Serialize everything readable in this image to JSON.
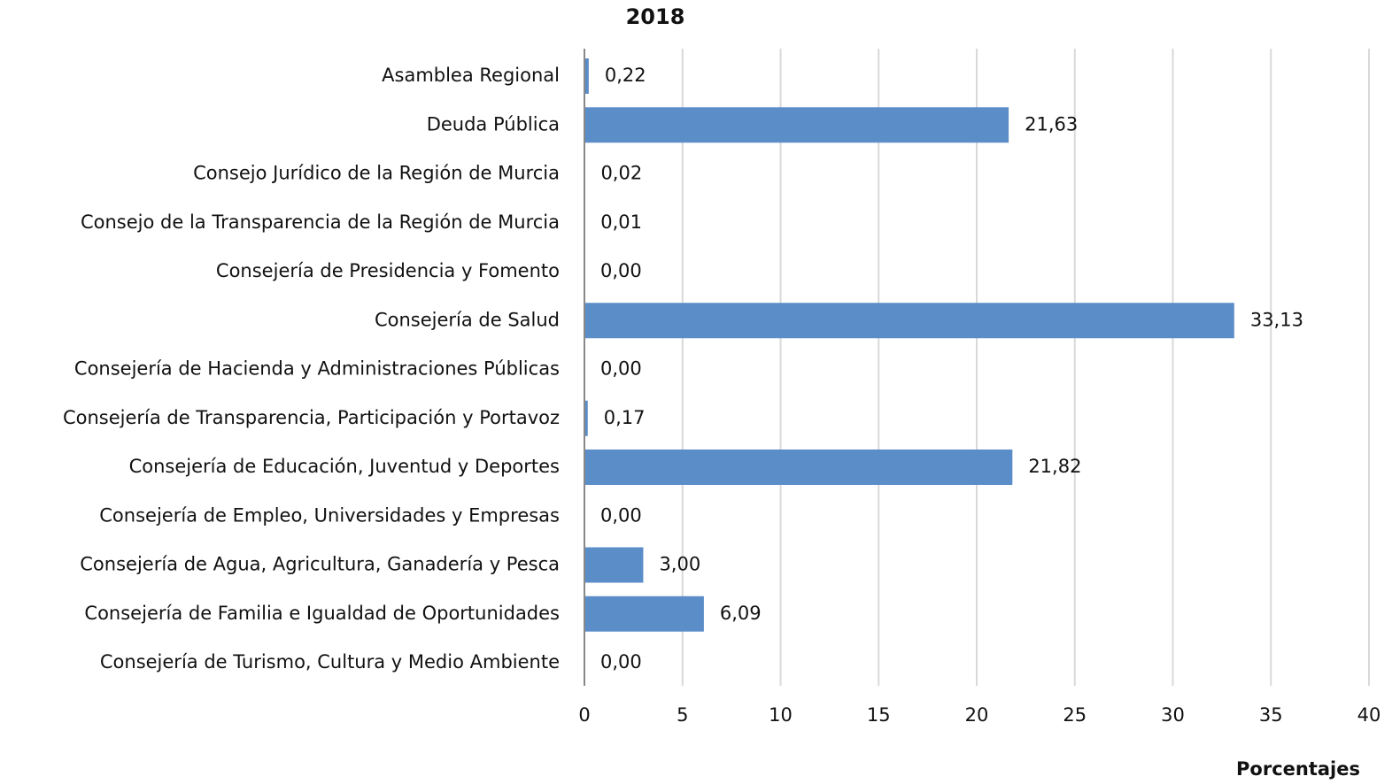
{
  "chart_data": {
    "type": "hbar",
    "title": "2018",
    "x_label": "Porcentajes",
    "categories": [
      "Asamblea Regional",
      "Deuda Pública",
      "Consejo Jurídico de la Región de Murcia",
      "Consejo de la Transparencia de la Región de Murcia",
      "Consejería de Presidencia y Fomento",
      "Consejería de Salud",
      "Consejería de  Hacienda y Administraciones Públicas",
      "Consejería de Transparencia, Participación y Portavoz",
      "Consejería de Educación, Juventud y Deportes",
      "Consejería de Empleo, Universidades y Empresas",
      "Consejería de Agua, Agricultura, Ganadería y Pesca",
      "Consejería de Familia e Igualdad de Oportunidades",
      "Consejería de Turismo, Cultura y Medio Ambiente"
    ],
    "values": [
      0.22,
      21.63,
      0.02,
      0.01,
      0.0,
      33.13,
      0.0,
      0.17,
      21.82,
      0.0,
      3.0,
      6.09,
      0.0
    ],
    "value_labels": [
      "0,22",
      "21,63",
      "0,02",
      "0,01",
      "0,00",
      "33,13",
      "0,00",
      "0,17",
      "21,82",
      "0,00",
      "3,00",
      "6,09",
      "0,00"
    ],
    "color": "#5b8dc9",
    "xlim": [
      0,
      40
    ],
    "xticks": [
      0,
      5,
      10,
      15,
      20,
      25,
      30,
      35,
      40
    ],
    "grid": true
  }
}
